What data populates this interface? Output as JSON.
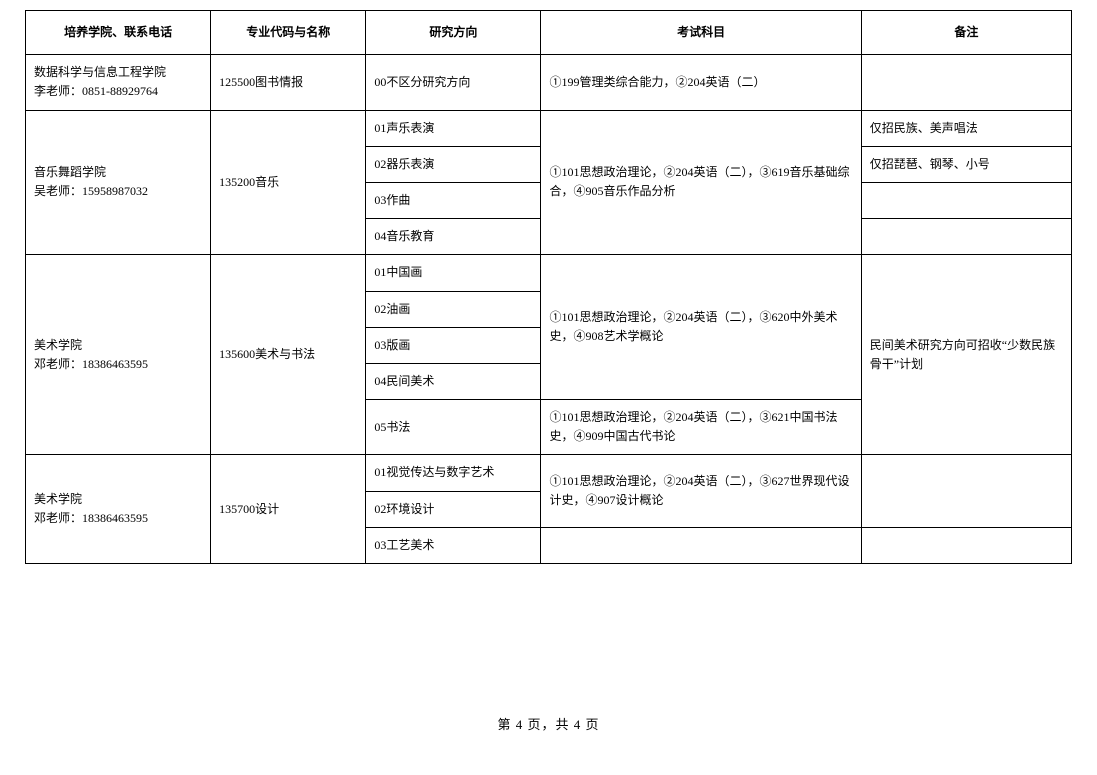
{
  "header": {
    "col1": "培养学院、联系电话",
    "col2": "专业代码与名称",
    "col3": "研究方向",
    "col4": "考试科目",
    "col5": "备注"
  },
  "rows": {
    "r1": {
      "school": "数据科学与信息工程学院\n李老师：0851-88929764",
      "major": "125500图书情报",
      "dir": "00不区分研究方向",
      "exam": "①199管理类综合能力，②204英语（二）",
      "note": ""
    },
    "r2": {
      "school": "音乐舞蹈学院\n吴老师：15958987032",
      "major": "135200音乐",
      "dir1": "01声乐表演",
      "dir2": "02器乐表演",
      "dir3": "03作曲",
      "dir4": "04音乐教育",
      "exam": "①101思想政治理论，②204英语（二），③619音乐基础综合，④905音乐作品分析",
      "note1": "仅招民族、美声唱法",
      "note2": "仅招琵琶、钢琴、小号",
      "note3": "",
      "note4": ""
    },
    "r3": {
      "school": "美术学院\n邓老师：18386463595",
      "major": "135600美术与书法",
      "dir1": "01中国画",
      "dir2": "02油画",
      "dir3": "03版画",
      "dir4": "04民间美术",
      "dir5": "05书法",
      "exam1": "①101思想政治理论，②204英语（二），③620中外美术史，④908艺术学概论",
      "exam2": "①101思想政治理论，②204英语（二），③621中国书法史，④909中国古代书论",
      "note": "民间美术研究方向可招收“少数民族骨干”计划"
    },
    "r4": {
      "school": "美术学院\n邓老师：18386463595",
      "major": "135700设计",
      "dir1": "01视觉传达与数字艺术",
      "dir2": "02环境设计",
      "dir3": "03工艺美术",
      "exam1": "①101思想政治理论，②204英语（二），③627世界现代设计史，④907设计概论",
      "note1": "",
      "note2": ""
    }
  },
  "footer": "第 4 页，共 4 页"
}
